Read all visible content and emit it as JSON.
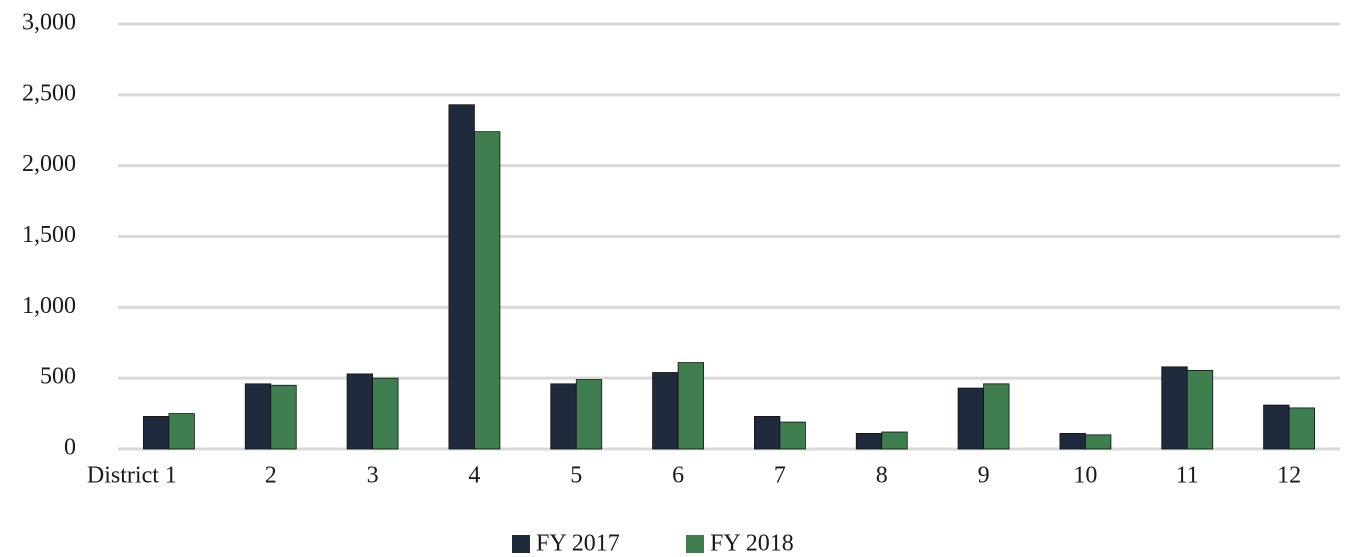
{
  "chart_data": {
    "type": "bar",
    "categories": [
      "District 1",
      "2",
      "3",
      "4",
      "5",
      "6",
      "7",
      "8",
      "9",
      "10",
      "11",
      "12"
    ],
    "series": [
      {
        "name": "FY 2017",
        "color": "#1f2a3c",
        "values": [
          230,
          460,
          530,
          2430,
          460,
          540,
          230,
          110,
          430,
          110,
          580,
          310
        ]
      },
      {
        "name": "FY 2018",
        "color": "#3f7f4f",
        "values": [
          250,
          450,
          500,
          2240,
          490,
          610,
          190,
          120,
          460,
          100,
          555,
          290
        ]
      }
    ],
    "ylim": [
      0,
      3000
    ],
    "yticks": [
      0,
      500,
      {
        "value": 1000,
        "label": "1,000"
      },
      {
        "value": 1500,
        "label": "1,500"
      },
      {
        "value": 2000,
        "label": "2,000"
      },
      {
        "value": 2500,
        "label": "2,500"
      },
      {
        "value": 3000,
        "label": "3,000"
      }
    ],
    "grid": true,
    "legend": "bottom"
  }
}
